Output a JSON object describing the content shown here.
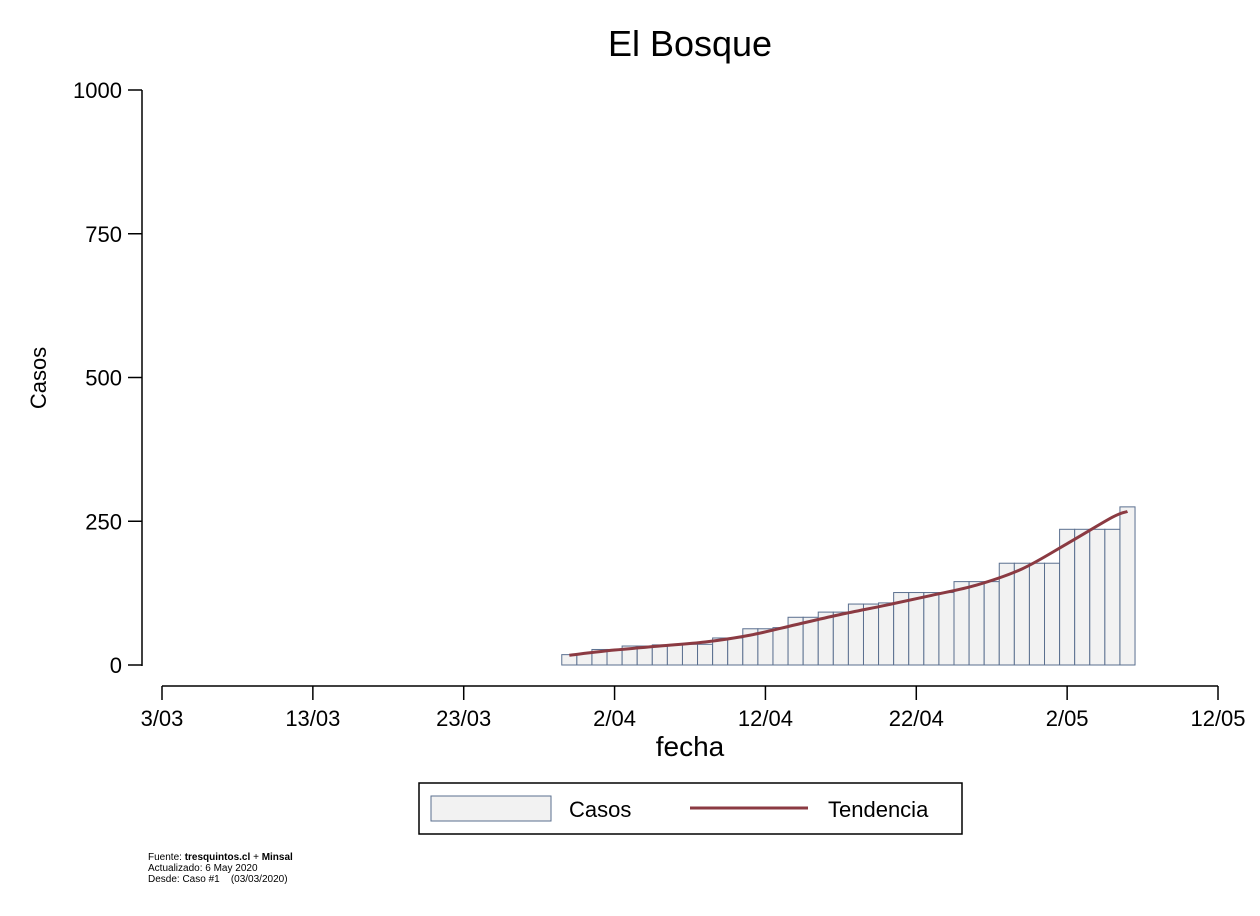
{
  "chart_data": {
    "type": "bar",
    "title": "El Bosque",
    "xlabel": "fecha",
    "ylabel": "Casos",
    "ylim": [
      0,
      1000
    ],
    "yticks": [
      0,
      250,
      500,
      750,
      1000
    ],
    "xticks": [
      "3/03",
      "13/03",
      "23/03",
      "2/04",
      "12/04",
      "22/04",
      "2/05",
      "12/05"
    ],
    "grid": false,
    "legend_position": "bottom",
    "series": [
      {
        "name": "Casos",
        "kind": "bar",
        "color": "#f2f2f2",
        "edge_color": "#5a6f8f",
        "x": [
          "30/03",
          "31/03",
          "1/04",
          "2/04",
          "3/04",
          "4/04",
          "5/04",
          "6/04",
          "7/04",
          "8/04",
          "9/04",
          "10/04",
          "11/04",
          "12/04",
          "13/04",
          "14/04",
          "15/04",
          "16/04",
          "17/04",
          "18/04",
          "19/04",
          "20/04",
          "21/04",
          "22/04",
          "23/04",
          "24/04",
          "25/04",
          "26/04",
          "27/04",
          "28/04",
          "29/04",
          "30/04",
          "1/05",
          "2/05",
          "3/05",
          "4/05",
          "5/05",
          "6/05"
        ],
        "values": [
          18,
          20,
          27,
          27,
          33,
          33,
          35,
          35,
          36,
          36,
          47,
          47,
          63,
          63,
          65,
          83,
          83,
          92,
          92,
          106,
          106,
          108,
          126,
          126,
          126,
          126,
          145,
          145,
          145,
          177,
          177,
          177,
          177,
          236,
          236,
          236,
          236,
          275
        ]
      },
      {
        "name": "Tendencia",
        "kind": "line",
        "color": "#8b3a42",
        "x": [
          "30/03",
          "2/04",
          "5/04",
          "8/04",
          "11/04",
          "14/04",
          "17/04",
          "20/04",
          "23/04",
          "26/04",
          "29/04",
          "2/05",
          "5/05",
          "6/05"
        ],
        "values": [
          17,
          26,
          33,
          40,
          52,
          70,
          88,
          104,
          121,
          139,
          167,
          211,
          257,
          267
        ]
      }
    ]
  },
  "footer": {
    "source_label": "Fuente:",
    "source_site": "tresquintos.cl",
    "source_sep": "+",
    "source_org": "Minsal",
    "updated": "Actualizado: 6 May 2020",
    "since": "Desde: Caso #1    (03/03/2020)"
  }
}
